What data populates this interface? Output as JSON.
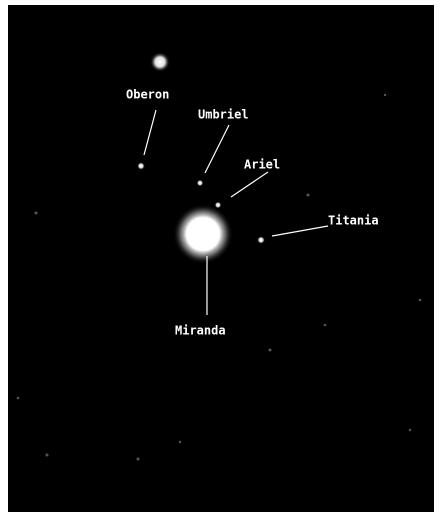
{
  "moons": [
    "Oberon",
    "Umbriel",
    "Ariel",
    "Titania",
    "Miranda"
  ]
}
